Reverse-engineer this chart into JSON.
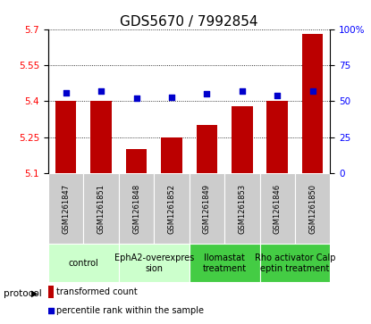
{
  "title": "GDS5670 / 7992854",
  "samples": [
    "GSM1261847",
    "GSM1261851",
    "GSM1261848",
    "GSM1261852",
    "GSM1261849",
    "GSM1261853",
    "GSM1261846",
    "GSM1261850"
  ],
  "transformed_counts": [
    5.4,
    5.4,
    5.2,
    5.25,
    5.3,
    5.38,
    5.4,
    5.68
  ],
  "percentile_ranks": [
    56,
    57,
    52,
    53,
    55,
    57,
    54,
    57
  ],
  "ylim_left": [
    5.1,
    5.7
  ],
  "ylim_right": [
    0,
    100
  ],
  "yticks_left": [
    5.1,
    5.25,
    5.4,
    5.55,
    5.7
  ],
  "yticks_right": [
    0,
    25,
    50,
    75,
    100
  ],
  "protocols": [
    {
      "label": "control",
      "samples": [
        0,
        1
      ],
      "color": "#ccffcc"
    },
    {
      "label": "EphA2-overexpres\nsion",
      "samples": [
        2,
        3
      ],
      "color": "#ccffcc"
    },
    {
      "label": "Ilomastat\ntreatment",
      "samples": [
        4,
        5
      ],
      "color": "#44cc44"
    },
    {
      "label": "Rho activator Calp\neptin treatment",
      "samples": [
        6,
        7
      ],
      "color": "#44cc44"
    }
  ],
  "bar_color": "#bb0000",
  "dot_color": "#0000cc",
  "bar_width": 0.6,
  "sample_bg_color": "#cccccc",
  "legend_bar_label": "transformed count",
  "legend_dot_label": "percentile rank within the sample",
  "protocol_label": "protocol",
  "title_fontsize": 11,
  "tick_fontsize": 7.5,
  "sample_fontsize": 6,
  "proto_fontsize": 7
}
